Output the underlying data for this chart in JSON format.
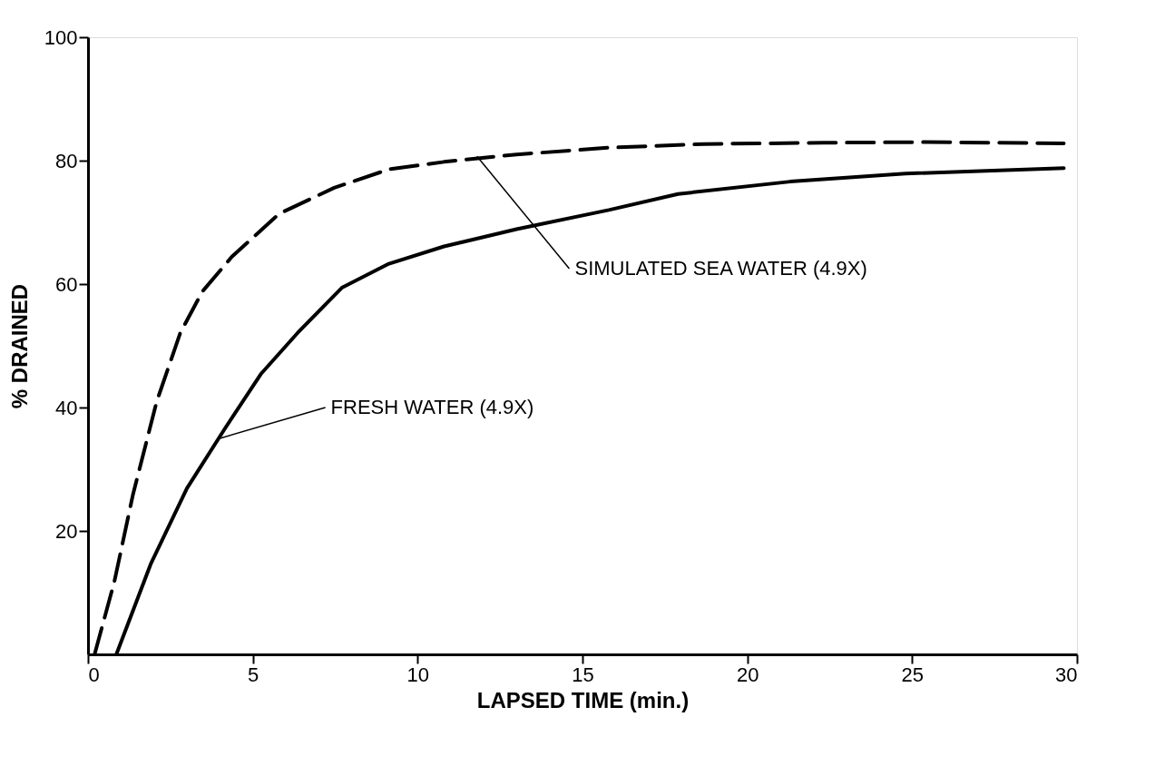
{
  "chart_data": {
    "type": "line",
    "xlabel": "LAPSED  TIME (min.)",
    "ylabel": "% DRAINED",
    "xlim": [
      0,
      30
    ],
    "ylim": [
      0,
      100
    ],
    "xticks": [
      0,
      5,
      10,
      15,
      20,
      25,
      30
    ],
    "yticks": [
      20,
      40,
      60,
      80,
      100
    ],
    "grid": false,
    "marker": "none",
    "series": [
      {
        "color": "#000000",
        "line_style": "dashed",
        "x": [
          0.2,
          0.8,
          1.36,
          2.08,
          2.8,
          3.47,
          4.36,
          5.8,
          7.47,
          9.13,
          10.8,
          13.0,
          15.8,
          18.7,
          22.3,
          25.4,
          29.6
        ],
        "values": [
          0,
          11.8,
          25.8,
          40.9,
          52.1,
          58.8,
          64.4,
          71.4,
          75.6,
          78.6,
          79.8,
          81.0,
          82.1,
          82.7,
          82.9,
          83.0,
          82.8
        ]
      },
      {
        "color": "#000000",
        "line_style": "solid",
        "x": [
          0.86,
          1.9,
          3.0,
          4.13,
          5.24,
          6.36,
          7.7,
          9.13,
          10.8,
          13.0,
          15.8,
          17.9,
          21.3,
          24.8,
          29.6
        ],
        "values": [
          0,
          14.6,
          26.9,
          36.4,
          45.4,
          52.1,
          59.4,
          63.3,
          66.1,
          68.9,
          72.0,
          74.6,
          76.6,
          77.9,
          78.8
        ]
      }
    ],
    "annotations": [
      {
        "text": "SIMULATED SEA WATER  (4.9X)",
        "x": 11.8,
        "y": 80.7
      },
      {
        "text": "FRESH WATER (4.9X)",
        "x": 4.0,
        "y": 35
      }
    ]
  }
}
